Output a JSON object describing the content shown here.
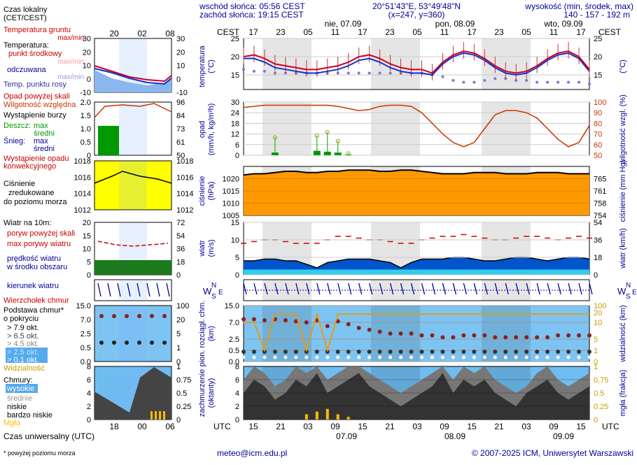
{
  "header": {
    "sunrise": "wschód słońca: 05:56 CEST",
    "sunset": "zachód słońca: 19:15 CEST",
    "coords": "20°51'43\"E, 53°49'48\"N",
    "grid": "(x=247,  y=360)",
    "height_label": "wysokość (min, środek, max)",
    "height_values": "140 - 157 - 192 m"
  },
  "legend": {
    "local_time": "Czas lokalny",
    "local_time_sub": "(CET/CEST)",
    "soil_temp": "Temperatura gruntu",
    "soil_temp_sub": "max/min",
    "temperature": "Temperatura:",
    "center_point": "punkt środkowy",
    "center_point_sub": "max/min",
    "felt": "odczuwana",
    "felt_sub": "max/min",
    "dew_point": "Temp. punktu rosy",
    "precip_above": "Opad powyżej skali",
    "rel_humidity": "Wilgotność względna",
    "storm": "Wystąpienie burzy",
    "rain": "Deszcz:",
    "snow": "Śnieg:",
    "max": "max",
    "mean": "średni",
    "convective": "Wystąpienie opadu",
    "convective_sub": "konwekcyjnego",
    "pressure": "Ciśnienie",
    "pressure_sub1": "zredukowane",
    "pressure_sub2": "do poziomu morza",
    "wind": "Wiatr na 10m:",
    "gusts_above": "poryw powyżej skali",
    "max_gusts": "max porywy wiatru",
    "wind_speed": "prędkość wiatru",
    "wind_speed_sub": "w środku obszaru",
    "wind_dir": "kierunek wiatru",
    "cloud_top": "Wierzchołek chmur",
    "cloud_base": "Podstawa chmur*",
    "cloud_base_sub": "o pokryciu",
    "okt79": "> 7.9 okt.",
    "okt65": "> 6.5 okt.",
    "okt45": "> 4.5 okt.",
    "okt25": "> 2.5 okt.",
    "okt01": "> 0.1 okt.",
    "visibility": "Widzialność",
    "clouds": "Chmury:",
    "high": "wysokie",
    "medium": "średnie",
    "low": "niskie",
    "very_low": "bardzo niskie",
    "fog": "Mgła",
    "utc_time": "Czas uniwersalny (UTC)",
    "footnote": "* powyżej poziomu morza"
  },
  "footer": {
    "email": "meteo@icm.edu.pl",
    "copyright": "© 2007-2025 ICM, Uniwersytet Warszawski"
  },
  "colors": {
    "temp_line": "#cc0022",
    "felt_line": "#1133cc",
    "dew_dots": "#7777dd",
    "humidity": "#cc3300",
    "pressure_fill": "#ff9900",
    "wind_fill": "#0055cc",
    "label_blue": "#000099",
    "label_red": "#cc0000"
  },
  "chart_data": [
    {
      "panel": "temperature",
      "type": "line",
      "ylabel": "temperatura (°C)",
      "ylabel_right": "(°C)",
      "ylim": [
        11,
        25
      ],
      "yticks": [
        15,
        20,
        25
      ],
      "series": [
        {
          "name": "temperatura",
          "values": [
            20,
            20.5,
            19.5,
            18,
            17.5,
            17,
            16.5,
            16.5,
            17,
            17.5,
            18.5,
            20,
            20.5,
            19.5,
            18,
            17,
            16.5,
            16.5,
            15.5,
            18.5,
            20.5,
            21.5,
            21,
            19.5,
            17.5,
            16,
            15.5,
            16,
            17.5,
            19.5,
            21,
            21.5,
            20,
            16.5
          ]
        },
        {
          "name": "temperatura odczuwana",
          "values": [
            19.5,
            19.5,
            18.5,
            17,
            16.5,
            16,
            15.5,
            15.5,
            16,
            16.5,
            17.5,
            19,
            19.5,
            18.5,
            17,
            16,
            15.5,
            15.5,
            15,
            18,
            20,
            21,
            20.5,
            19,
            17,
            15.5,
            15,
            15.5,
            17,
            19,
            20.5,
            21,
            19.5,
            16
          ]
        },
        {
          "name": "temperatura punktu rosy",
          "values": [
            16.5,
            16,
            16,
            15.5,
            15.5,
            15.5,
            15.5,
            15.5,
            15.5,
            15.5,
            15.5,
            15.5,
            15.5,
            15.5,
            15.5,
            15.5,
            15.5,
            15.5,
            15,
            14.5,
            13.5,
            13,
            13,
            13.5,
            14,
            14,
            13.5,
            13.5,
            13,
            13,
            13,
            13,
            13,
            12.5
          ]
        }
      ]
    },
    {
      "panel": "precipitation",
      "type": "bar",
      "ylabel": "opad (mm/h, kg/m²h)",
      "ylabel_right": "wilgotność wzgl. (%)",
      "ylim": [
        0,
        30
      ],
      "yticks": [
        0,
        6,
        12,
        18,
        24,
        30
      ],
      "yticks_right": [
        50,
        60,
        70,
        80,
        90,
        100
      ],
      "series": [
        {
          "name": "wilgotność względna",
          "values": [
            95,
            96,
            97,
            97,
            97,
            97,
            97,
            97,
            97,
            96,
            94,
            92,
            93,
            96,
            97,
            97,
            96,
            90,
            80,
            70,
            62,
            58,
            62,
            75,
            88,
            92,
            92,
            90,
            85,
            75,
            65,
            58,
            62,
            78
          ]
        },
        {
          "name": "opad max",
          "values": [
            0,
            0,
            0,
            10,
            0,
            0,
            0,
            11,
            13,
            8,
            1,
            0,
            0,
            0,
            0,
            0,
            0,
            0,
            0,
            0,
            0,
            0,
            0,
            0,
            0,
            0,
            0,
            0,
            0,
            0,
            0,
            0,
            0,
            0
          ]
        },
        {
          "name": "opad średni",
          "values": [
            0,
            0,
            0,
            1.5,
            0,
            0,
            0,
            2.5,
            2,
            1.5,
            0.3,
            0,
            0,
            0,
            0,
            0,
            0,
            0,
            0,
            0,
            0,
            0,
            0,
            0,
            0,
            0,
            0,
            0,
            0,
            0,
            0,
            0,
            0,
            0
          ]
        }
      ]
    },
    {
      "panel": "pressure",
      "type": "area",
      "ylabel": "ciśnienie (hPa)",
      "ylabel_right": "ciśnienie (mm Hg)",
      "ylim": [
        1005,
        1025
      ],
      "yticks": [
        1005,
        1010,
        1015,
        1020
      ],
      "yticks_right": [
        754,
        758,
        761,
        765
      ],
      "series": [
        {
          "name": "ciśnienie",
          "values": [
            1021.5,
            1022,
            1022,
            1022.5,
            1023,
            1023,
            1022.5,
            1022.5,
            1023,
            1023,
            1023.5,
            1023.5,
            1023.5,
            1023,
            1023,
            1023.5,
            1023.5,
            1023,
            1022.5,
            1022,
            1022,
            1022,
            1022.5,
            1022.5,
            1022.5,
            1022,
            1022,
            1022,
            1022.5,
            1022.5,
            1022.5,
            1022,
            1022,
            1022
          ]
        }
      ]
    },
    {
      "panel": "wind",
      "type": "area",
      "ylabel": "wiatr (m/s)",
      "ylabel_right": "wiatr (km/h)",
      "ylim": [
        0,
        15
      ],
      "yticks": [
        0,
        5,
        10,
        15
      ],
      "yticks_right": [
        0,
        18,
        36,
        54
      ],
      "series": [
        {
          "name": "prędkość wiatru",
          "values": [
            4,
            4,
            4.5,
            4.5,
            4,
            4,
            3,
            2,
            3.5,
            4,
            4.5,
            4.5,
            4.5,
            4,
            3.5,
            2,
            3.5,
            4.5,
            4.5,
            4.5,
            5,
            5,
            4.5,
            4,
            4,
            4.5,
            5,
            5,
            4.5,
            4,
            4.5,
            5,
            5,
            4.5
          ]
        },
        {
          "name": "max porywy wiatru",
          "values": [
            9,
            9.5,
            10,
            10,
            9.5,
            9,
            9,
            9,
            10,
            11,
            11,
            10.5,
            10,
            10,
            9.5,
            9,
            9,
            10,
            10.5,
            11,
            11,
            11.5,
            11,
            10.5,
            10,
            10,
            10.5,
            11,
            11,
            10.5,
            10,
            10.5,
            11,
            10.5
          ]
        }
      ]
    },
    {
      "panel": "clouds_base",
      "type": "scatter",
      "ylabel": "pion. rozciągł. chm. (km)",
      "ylabel_right": "widzialność (km)",
      "ylim": [
        0,
        15
      ],
      "yticks": [
        0.0,
        0.5,
        2.5,
        7.0,
        15.0
      ],
      "yticks_right": [
        0,
        1,
        5,
        10,
        20,
        100
      ],
      "series": [
        {
          "name": "wierzchołek chmur",
          "values": [
            8.5,
            8.5,
            8,
            8.5,
            8,
            7.5,
            7,
            8,
            6,
            7.5,
            6.5,
            5.5,
            5,
            4.5,
            4,
            4,
            4,
            3.5,
            3.5,
            3,
            3,
            3.5,
            3.5,
            3.5,
            3,
            3,
            3,
            3,
            3,
            3,
            3.5,
            3.5,
            3.5,
            3.5
          ]
        },
        {
          "name": "widzialność",
          "values": [
            10,
            10,
            1,
            20,
            20,
            20,
            1,
            20,
            1,
            20,
            20,
            20,
            20,
            20,
            20,
            20,
            20,
            20,
            20,
            20,
            20,
            20,
            20,
            20,
            20,
            20,
            20,
            20,
            20,
            20,
            20,
            20,
            20,
            20
          ]
        }
      ]
    },
    {
      "panel": "cloud_cover",
      "type": "area",
      "ylabel": "zachmurzenie (oktanty)",
      "ylabel_right": "mgła (frakcja)",
      "ylim": [
        0,
        8
      ],
      "yticks": [
        0,
        2,
        4,
        6,
        8
      ],
      "yticks_right": [
        0,
        0.25,
        0.5,
        0.75,
        1
      ],
      "series": [
        {
          "name": "chmury średnie",
          "values": [
            6,
            8,
            7,
            5,
            6,
            8,
            7,
            8,
            6,
            7,
            8,
            8,
            7,
            6,
            5,
            4,
            5,
            6,
            7,
            8,
            6,
            8,
            7,
            8,
            6,
            5,
            4,
            5,
            7,
            8,
            6,
            5,
            6,
            7
          ]
        },
        {
          "name": "chmury niskie",
          "values": [
            4,
            6,
            5,
            3,
            4,
            6,
            5,
            7,
            4,
            5,
            6,
            7,
            5,
            4,
            3,
            2,
            3,
            4,
            5,
            7,
            4,
            6,
            5,
            6,
            4,
            3,
            2,
            4,
            5,
            6,
            4,
            3,
            4,
            5
          ]
        },
        {
          "name": "mgła",
          "values": [
            0,
            0,
            0,
            0,
            0,
            0,
            0.1,
            0.15,
            0.2,
            0.1,
            0.05,
            0,
            0,
            0,
            0,
            0,
            0,
            0,
            0,
            0,
            0,
            0,
            0,
            0,
            0,
            0,
            0,
            0,
            0,
            0,
            0,
            0,
            0,
            0
          ]
        }
      ]
    },
    {
      "panel": "time_axis",
      "type": "table",
      "cest_label": "CEST",
      "utc_label": "UTC",
      "cest_ticks": [
        "17",
        "23",
        "05",
        "11",
        "17",
        "23",
        "05",
        "11",
        "17",
        "23",
        "05",
        "11",
        "17"
      ],
      "utc_ticks": [
        "15",
        "21",
        "03",
        "09",
        "15",
        "21",
        "03",
        "09",
        "15",
        "21",
        "03",
        "09",
        "15"
      ],
      "days_top": [
        "nie, 07.09",
        "pon, 08.09",
        "wto, 09.09"
      ],
      "days_bottom": [
        "07.09",
        "08.09",
        "09.09"
      ],
      "mini_cest_ticks": [
        "20",
        "02",
        "08"
      ],
      "mini_utc_ticks": [
        "18",
        "00",
        "06"
      ]
    }
  ]
}
